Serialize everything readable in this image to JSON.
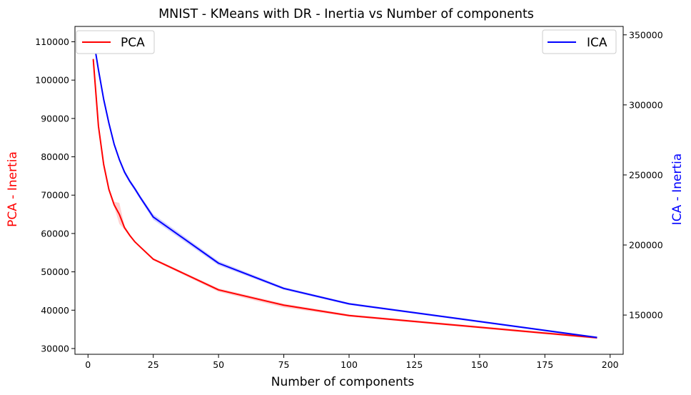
{
  "chart_data": {
    "type": "line",
    "title": "MNIST - KMeans with DR - Inertia vs Number of components",
    "xlabel": "Number of components",
    "ylabel_left": "PCA - Inertia",
    "ylabel_right": "ICA - Inertia",
    "xlim": [
      -5,
      205
    ],
    "ylim_left": [
      28500,
      114000
    ],
    "ylim_right": [
      122000,
      356000
    ],
    "xticks": [
      0,
      25,
      50,
      75,
      100,
      125,
      150,
      175,
      200
    ],
    "xtick_labels": [
      "0",
      "25",
      "50",
      "75",
      "100",
      "125",
      "150",
      "175",
      "200"
    ],
    "yticks_left": [
      30000,
      40000,
      50000,
      60000,
      70000,
      80000,
      90000,
      100000,
      110000
    ],
    "ytick_labels_left": [
      "30000",
      "40000",
      "50000",
      "60000",
      "70000",
      "80000",
      "90000",
      "100000",
      "110000"
    ],
    "yticks_right": [
      150000,
      200000,
      250000,
      300000,
      350000
    ],
    "ytick_labels_right": [
      "150000",
      "200000",
      "250000",
      "300000",
      "350000"
    ],
    "grid": false,
    "series": [
      {
        "name": "PCA",
        "axis": "left",
        "color": "#ff0000",
        "x": [
          2,
          4,
          6,
          8,
          10,
          12,
          14,
          16,
          18,
          20,
          25,
          50,
          75,
          100,
          195
        ],
        "y": [
          105500,
          88000,
          78000,
          71500,
          67500,
          65000,
          61500,
          59500,
          57800,
          56500,
          53300,
          45300,
          41300,
          38600,
          32800
        ],
        "band_low": [
          105000,
          87000,
          77200,
          71000,
          67000,
          62500,
          61000,
          59200,
          57600,
          56300,
          53000,
          44800,
          40700,
          38300,
          32500
        ],
        "band_high": [
          106000,
          89000,
          78800,
          72000,
          68300,
          68000,
          62000,
          59800,
          58000,
          56700,
          53600,
          45700,
          41700,
          38900,
          33100
        ],
        "legend_position": "upper left"
      },
      {
        "name": "ICA",
        "axis": "right",
        "color": "#0000ff",
        "x": [
          2,
          4,
          6,
          8,
          10,
          12,
          14,
          16,
          18,
          20,
          25,
          50,
          75,
          100,
          195
        ],
        "y": [
          348000,
          325000,
          304000,
          287000,
          272000,
          261000,
          252000,
          245500,
          240000,
          234000,
          220000,
          187000,
          169000,
          158000,
          134000
        ],
        "band_low": [
          347000,
          323500,
          302500,
          285500,
          270500,
          259500,
          250500,
          244000,
          238500,
          232500,
          218000,
          185500,
          168000,
          157200,
          133300
        ],
        "band_high": [
          349000,
          326500,
          305500,
          288500,
          273500,
          262500,
          253500,
          247000,
          241500,
          235500,
          222000,
          188500,
          170000,
          158800,
          134700
        ],
        "legend_position": "upper right"
      }
    ]
  }
}
